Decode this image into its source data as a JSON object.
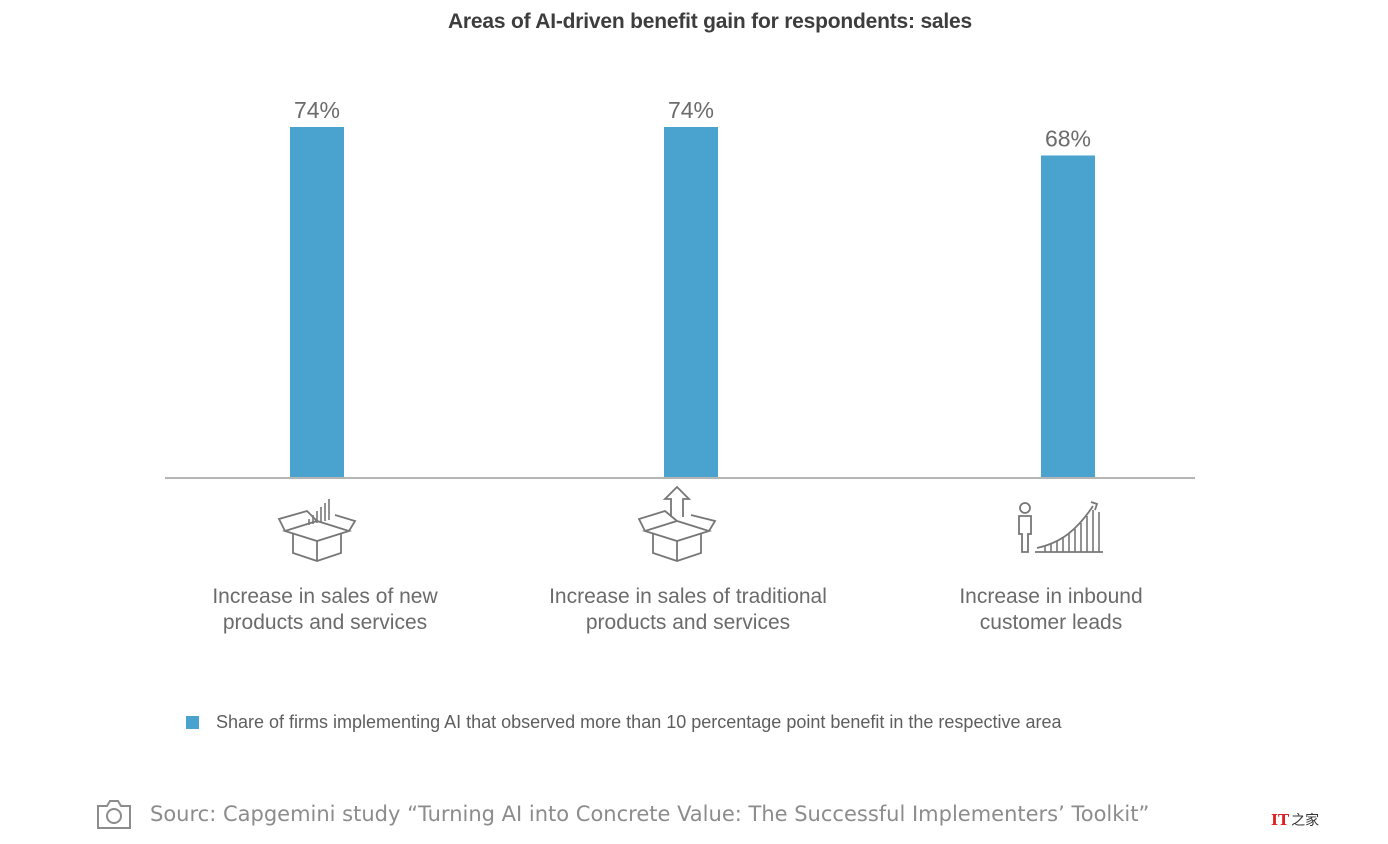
{
  "chart_data": {
    "type": "bar",
    "title": "Areas of AI-driven benefit gain for respondents: sales",
    "categories": [
      [
        "Increase in sales of new",
        "products and services"
      ],
      [
        "Increase in sales of traditional",
        "products and services"
      ],
      [
        "Increase in inbound",
        "customer leads"
      ]
    ],
    "values": [
      74,
      74,
      68
    ],
    "value_labels": [
      "74%",
      "74%",
      "68%"
    ],
    "unit": "%",
    "ylim": [
      0,
      74
    ],
    "grid": false,
    "legend": "bottom",
    "series": [
      {
        "name": "Share of firms implementing AI that observed more than 10 percentage point benefit in the respective area",
        "color": "#4aa3cf"
      }
    ]
  },
  "icons": [
    "box-with-chart-icon",
    "box-with-up-arrow-icon",
    "person-with-growth-chart-icon"
  ],
  "source": {
    "icon": "camera-icon",
    "text": "Sourc: Capgemini study “Turning AI into Concrete Value: The Successful Implementers’ Toolkit”"
  },
  "watermark": {
    "badge": "IT",
    "suffix": "之家"
  }
}
